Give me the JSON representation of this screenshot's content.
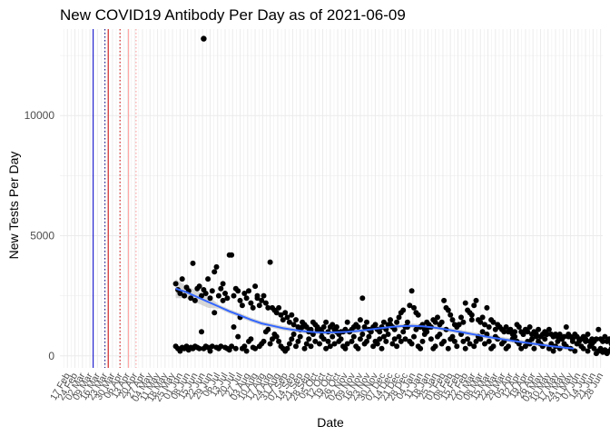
{
  "chart_data": {
    "type": "scatter",
    "title": "New COVID19 Antibody Per Day as of 2021-06-09",
    "xlabel": "Date",
    "ylabel": "New Tests Per Day",
    "ylim": [
      -500,
      13600
    ],
    "x_range": [
      "2020-02-10",
      "2021-06-30"
    ],
    "y_ticks": [
      0,
      5000,
      10000
    ],
    "x_tick_labels": [
      "17 Feb",
      "24 Feb",
      "02 Mar",
      "09 Mar",
      "16 Mar",
      "23 Mar",
      "30 Mar",
      "06 Apr",
      "13 Apr",
      "20 Apr",
      "27 Apr",
      "04 May",
      "11 May",
      "18 May",
      "25 May",
      "01 Jun",
      "08 Jun",
      "15 Jun",
      "22 Jun",
      "29 Jun",
      "06 Jul",
      "13 Jul",
      "20 Jul",
      "27 Jul",
      "03 Aug",
      "10 Aug",
      "17 Aug",
      "24 Aug",
      "31 Aug",
      "07 Sep",
      "14 Sep",
      "21 Sep",
      "28 Sep",
      "05 Oct",
      "12 Oct",
      "19 Oct",
      "26 Oct",
      "02 Nov",
      "09 Nov",
      "16 Nov",
      "23 Nov",
      "30 Nov",
      "07 Dec",
      "14 Dec",
      "21 Dec",
      "28 Dec",
      "04 Jan",
      "11 Jan",
      "18 Jan",
      "25 Jan",
      "01 Feb",
      "08 Feb",
      "15 Feb",
      "22 Feb",
      "01 Mar",
      "08 Mar",
      "15 Mar",
      "22 Mar",
      "29 Mar",
      "05 Apr",
      "12 Apr",
      "19 Apr",
      "26 Apr",
      "03 May",
      "10 May",
      "17 May",
      "24 May",
      "31 May",
      "07 Jun",
      "14 Jun",
      "21 Jun",
      "28 Jun"
    ],
    "tick_start_date": "2020-02-17",
    "tick_interval_days": 7,
    "grid": true,
    "reference_lines": [
      {
        "date": "2020-03-12",
        "color": "#0000cc",
        "style": "solid"
      },
      {
        "date": "2020-03-23",
        "color": "#000080",
        "style": "dotted"
      },
      {
        "date": "2020-03-26",
        "color": "#cc0000",
        "style": "solid"
      },
      {
        "date": "2020-04-06",
        "color": "#cc0000",
        "style": "dotted"
      },
      {
        "date": "2020-04-14",
        "color": "#ff9999",
        "style": "solid"
      },
      {
        "date": "2020-04-21",
        "color": "#ff9999",
        "style": "dotted"
      }
    ],
    "series_high": {
      "start_date": "2020-05-28",
      "values": [
        3000,
        2750,
        2600,
        3200,
        2500,
        2850,
        2700,
        2400,
        3850,
        2300,
        2800,
        2900,
        2500,
        2750,
        2600,
        3200,
        2400,
        2700,
        3500,
        3700,
        2500,
        2800,
        3000,
        2600,
        2400,
        4200,
        4200,
        2500,
        2800,
        2700,
        2300,
        2100,
        2600,
        2400,
        2700,
        2200,
        2000,
        2900,
        2400,
        2100,
        2300,
        2500,
        2200,
        2000,
        3900,
        2000,
        1900,
        1800,
        2000,
        1700,
        1500,
        1800,
        1600,
        1400,
        1700,
        1300,
        1500,
        1200,
        1100,
        1400,
        1300,
        1200,
        1000,
        1100,
        1400,
        1300,
        1200,
        1100,
        1000,
        1200,
        1400,
        1000,
        1200,
        1300,
        1100,
        1200,
        900,
        1000,
        1000,
        1100,
        1400,
        1000,
        1100,
        1200,
        1300,
        1200,
        1500,
        2400,
        1200,
        1400,
        1100,
        1000,
        1200,
        1300,
        1100,
        1000,
        1200,
        1400,
        1100,
        1300,
        1500,
        1200,
        1100,
        1400,
        1600,
        1800,
        1900,
        1200,
        1400,
        2100,
        2700,
        2000,
        1800,
        1700,
        1200,
        1300,
        1100,
        1400,
        1300,
        1200,
        1500,
        1400,
        1600,
        1300,
        1400,
        2300,
        2000,
        1900,
        1700,
        1500,
        1300,
        1200,
        1300,
        1600,
        1400,
        2200,
        1900,
        1800,
        1700,
        2100,
        2300,
        1500,
        1400,
        1600,
        1300,
        2000,
        1200,
        1500,
        1400,
        1100,
        1300,
        1200,
        1100,
        1000,
        1200,
        1000,
        1100,
        900,
        1000,
        1300,
        1200,
        1000,
        900,
        1100,
        1000,
        1200,
        900,
        1000,
        900,
        1100,
        800,
        900,
        1000,
        900,
        1100,
        900,
        800,
        900,
        800,
        900,
        700,
        800,
        1200,
        900,
        800,
        700,
        900,
        800,
        600,
        700,
        800,
        700,
        900,
        600,
        700,
        600,
        700,
        1100,
        700,
        600,
        800,
        600,
        700,
        500,
        600,
        500,
        400,
        300,
        900
      ]
    },
    "series_low": {
      "start_date": "2020-05-28",
      "values": [
        400,
        300,
        200,
        350,
        300,
        400,
        250,
        350,
        300,
        400,
        350,
        300,
        1000,
        300,
        400,
        350,
        200,
        400,
        1800,
        350,
        300,
        400,
        2300,
        350,
        300,
        250,
        400,
        1200,
        300,
        800,
        1600,
        300,
        400,
        200,
        600,
        700,
        350,
        300,
        2500,
        400,
        500,
        600,
        1000,
        1100,
        500,
        700,
        900,
        800,
        600,
        400,
        300,
        200,
        300,
        500,
        700,
        900,
        400,
        600,
        800,
        1200,
        300,
        500,
        700,
        400,
        900,
        600,
        1100,
        500,
        800,
        700,
        300,
        600,
        400,
        800,
        500,
        1000,
        600,
        700,
        400,
        300,
        500,
        1000,
        600,
        800,
        400,
        300,
        700,
        900,
        500,
        600,
        800,
        1000,
        400,
        600,
        500,
        700,
        300,
        800,
        600,
        900,
        1300,
        500,
        700,
        400,
        800,
        600,
        1000,
        700,
        1200,
        600,
        500,
        800,
        1100,
        400,
        300,
        600,
        900,
        1000,
        1200,
        700,
        300,
        400,
        800,
        900,
        500,
        600,
        1100,
        300,
        700,
        800,
        600,
        400,
        1300,
        900,
        600,
        300,
        700,
        500,
        1500,
        400,
        600,
        800,
        700,
        1000,
        500,
        900,
        600,
        300,
        400,
        800,
        700,
        1200,
        500,
        600,
        300,
        400,
        1000,
        700,
        800,
        600,
        500,
        300,
        900,
        400,
        600,
        500,
        700,
        300,
        800,
        600,
        500,
        400,
        700,
        900,
        300,
        500,
        200,
        400,
        600,
        300,
        700,
        500,
        400,
        800,
        300,
        600,
        200,
        500,
        700,
        400,
        300,
        600,
        200,
        400,
        500,
        300,
        100,
        200,
        300,
        150,
        250,
        100,
        200,
        300,
        150,
        100,
        200,
        250,
        300,
        150,
        200,
        100
      ]
    },
    "outlier": {
      "date": "2020-06-23",
      "value": 13200
    },
    "trend": {
      "start_date": "2020-05-28",
      "end_date": "2021-06-03",
      "values": [
        2800,
        2650,
        2450,
        2250,
        2050,
        1850,
        1680,
        1500,
        1350,
        1250,
        1150,
        1080,
        1020,
        980,
        970,
        980,
        1000,
        1040,
        1090,
        1150,
        1200,
        1240,
        1250,
        1230,
        1180,
        1110,
        1030,
        950,
        870,
        790,
        720,
        650,
        580,
        520,
        460,
        400,
        350,
        300
      ]
    },
    "point_color": "#000000",
    "trend_color": "#3366ff",
    "band_color": "#bdbdbd",
    "grid_color": "#ebebeb"
  }
}
